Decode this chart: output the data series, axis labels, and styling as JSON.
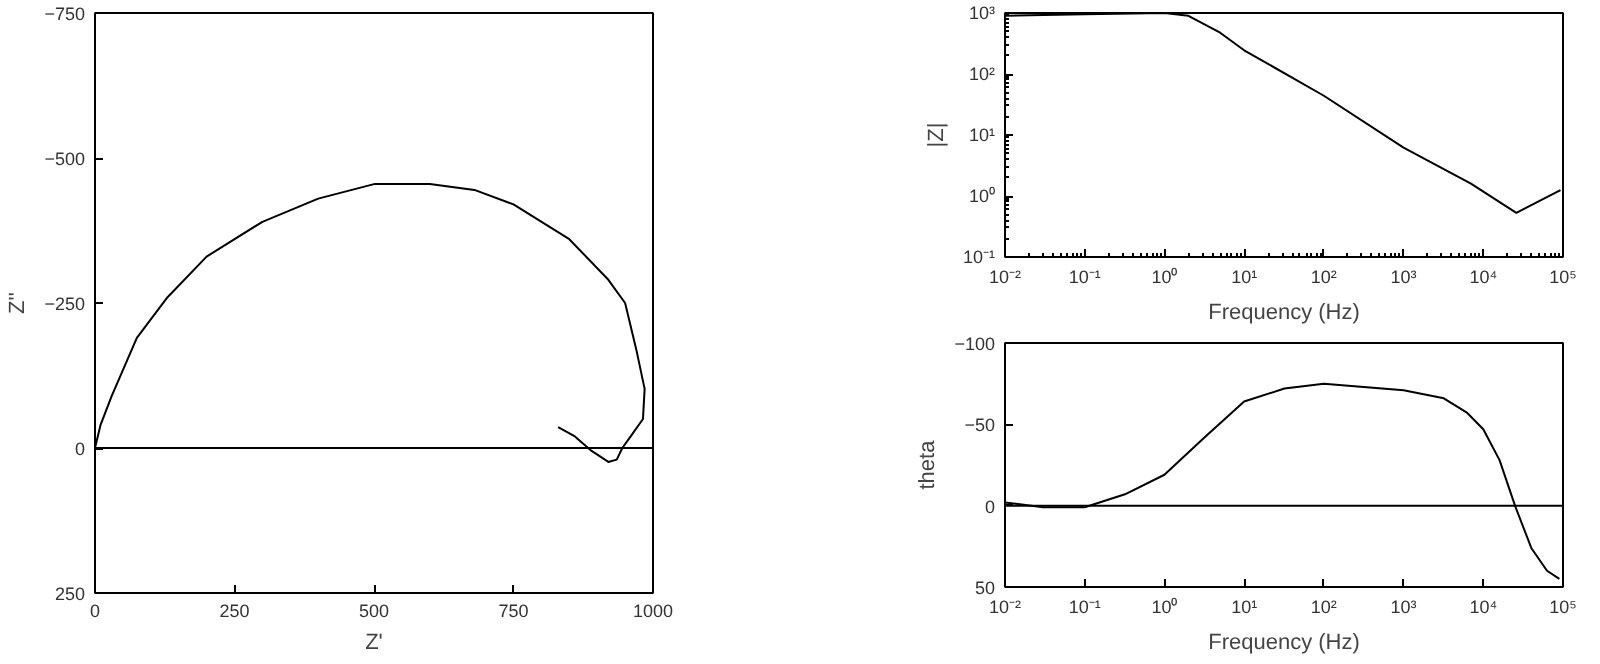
{
  "chart_data": [
    {
      "type": "line",
      "xlabel": "Z'",
      "ylabel": "Z''",
      "xlim": [
        0,
        1000
      ],
      "ylim": [
        250,
        -750
      ],
      "xticks": [
        0,
        250,
        500,
        750,
        1000
      ],
      "yticks": [
        -750,
        -500,
        -250,
        0,
        250
      ],
      "grid": false,
      "series": [
        {
          "color": "#000000",
          "x": [
            0,
            10,
            30,
            75,
            130,
            200,
            300,
            400,
            500,
            600,
            680,
            750,
            850,
            920,
            950,
            970,
            985,
            982,
            960,
            945,
            935,
            920,
            890,
            860,
            830
          ],
          "values": [
            0,
            -40,
            -90,
            -190,
            -260,
            -330,
            -390,
            -430,
            -455,
            -455,
            -445,
            -420,
            -360,
            -290,
            -250,
            -170,
            -102,
            -50,
            -20,
            0,
            20,
            24,
            5,
            -20,
            -36
          ]
        }
      ],
      "ref_lines": [
        {
          "axis": "y",
          "value": 0,
          "color": "#000000"
        }
      ]
    },
    {
      "type": "line",
      "xlabel": "Frequency (Hz)",
      "ylabel": "|Z|",
      "log": "xy",
      "xlim": [
        0.01,
        100000
      ],
      "ylim": [
        0.1,
        1000
      ],
      "xticks": [
        {
          "value": 0.01,
          "label": "10⁻²"
        },
        {
          "value": 0.1,
          "label": "10⁻¹"
        },
        {
          "value": 1,
          "label": "10⁰"
        },
        {
          "value": 10,
          "label": "10¹"
        },
        {
          "value": 100,
          "label": "10²"
        },
        {
          "value": 1000,
          "label": "10³"
        },
        {
          "value": 10000,
          "label": "10⁴"
        },
        {
          "value": 100000,
          "label": "10⁵"
        }
      ],
      "yticks": [
        {
          "value": 0.1,
          "label": "10⁻¹"
        },
        {
          "value": 1,
          "label": "10⁰"
        },
        {
          "value": 10,
          "label": "10¹"
        },
        {
          "value": 100,
          "label": "10²"
        },
        {
          "value": 1000,
          "label": "10³"
        }
      ],
      "grid": false,
      "series": [
        {
          "color": "#000000",
          "x": [
            0.01,
            0.1,
            1,
            2,
            5,
            10,
            100,
            1000,
            7000,
            26000,
            93000
          ],
          "values": [
            900,
            950,
            1000,
            900,
            475,
            245,
            44,
            6.2,
            1.6,
            0.53,
            1.25
          ]
        }
      ]
    },
    {
      "type": "line",
      "xlabel": "Frequency (Hz)",
      "ylabel": "theta",
      "log": "x",
      "xlim": [
        0.01,
        100000
      ],
      "ylim": [
        50,
        -100
      ],
      "xticks": [
        {
          "value": 0.01,
          "label": "10⁻²"
        },
        {
          "value": 0.1,
          "label": "10⁻¹"
        },
        {
          "value": 1,
          "label": "10⁰"
        },
        {
          "value": 10,
          "label": "10¹"
        },
        {
          "value": 100,
          "label": "10²"
        },
        {
          "value": 1000,
          "label": "10³"
        },
        {
          "value": 10000,
          "label": "10⁴"
        },
        {
          "value": 100000,
          "label": "10⁵"
        }
      ],
      "yticks": [
        -100,
        -50,
        0,
        50
      ],
      "grid": false,
      "series": [
        {
          "color": "#000000",
          "x": [
            0.01,
            0.03,
            0.1,
            0.32,
            1,
            3.2,
            10,
            32,
            100,
            1000,
            3200,
            6300,
            10000,
            16000,
            25000,
            40000,
            63000,
            90000
          ],
          "values": [
            -2,
            1,
            1,
            -7,
            -19,
            -42,
            -64,
            -72,
            -75,
            -71,
            -66,
            -57,
            -47,
            -28,
            0,
            26,
            40,
            45
          ]
        }
      ],
      "ref_lines": [
        {
          "axis": "y",
          "value": 0,
          "color": "#000000"
        }
      ]
    }
  ]
}
